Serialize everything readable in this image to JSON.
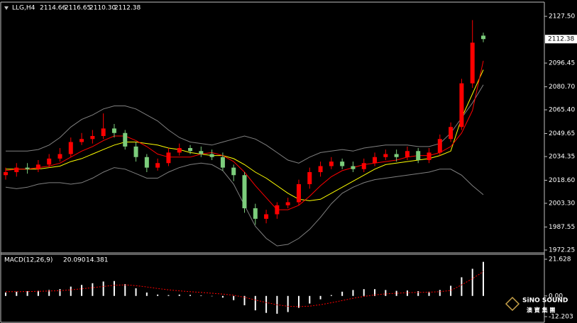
{
  "chart_data": {
    "type": "candlestick",
    "symbol_label": "LLG,H4",
    "header_values": [
      "2114.66",
      "2116.65",
      "2110.30",
      "2112.38"
    ],
    "ylim": [
      1971.3,
      2136.0
    ],
    "yticks": [
      {
        "value": 2127.5,
        "label": "2127.50"
      },
      2096.45,
      {
        "value": 2080.7,
        "label": "2080.70"
      },
      {
        "value": 2065.4,
        "label": "2065.40"
      },
      2049.65,
      2034.35,
      {
        "value": 2018.6,
        "label": "2018.60"
      },
      {
        "value": 2003.3,
        "label": "2003.30"
      },
      1987.55,
      1972.25
    ],
    "current_price": 2112.38,
    "up_color": "#ff0000",
    "down_color": "#7ccd7c",
    "open": [
      2022,
      2024,
      2027,
      2026,
      2029,
      2033,
      2036,
      2044,
      2046,
      2048,
      2053,
      2050,
      2041,
      2034,
      2027,
      2030,
      2037,
      2040,
      2038,
      2036,
      2034,
      2027,
      2022,
      2000,
      1993,
      1996,
      2002,
      2004,
      2016,
      2024,
      2028,
      2031,
      2028,
      2026,
      2030,
      2034,
      2036,
      2034,
      2038,
      2032,
      2037,
      2046,
      2054,
      2083,
      2114.66
    ],
    "high": [
      2027,
      2030,
      2030,
      2032,
      2036,
      2040,
      2047,
      2050,
      2052,
      2063,
      2056,
      2052,
      2044,
      2036,
      2033,
      2040,
      2043,
      2042,
      2041,
      2039,
      2037,
      2029,
      2024,
      2003,
      1999,
      2004,
      2007,
      2019,
      2027,
      2031,
      2034,
      2033,
      2031,
      2033,
      2037,
      2039,
      2039,
      2041,
      2040,
      2040,
      2049,
      2057,
      2086,
      2125,
      2116.65
    ],
    "low": [
      2019,
      2021,
      2023,
      2024,
      2027,
      2031,
      2034,
      2042,
      2043,
      2046,
      2047,
      2039,
      2031,
      2024,
      2025,
      2028,
      2035,
      2036,
      2034,
      2032,
      2025,
      2018,
      1997,
      1989,
      1990,
      1993,
      2000,
      2002,
      2013,
      2021,
      2026,
      2026,
      2024,
      2024,
      2028,
      2032,
      2031,
      2032,
      2030,
      2030,
      2035,
      2044,
      2052,
      2080,
      2110.3
    ],
    "close": [
      2024,
      2027,
      2026,
      2029,
      2033,
      2036,
      2044,
      2046,
      2048,
      2053,
      2050,
      2041,
      2034,
      2027,
      2030,
      2037,
      2040,
      2038,
      2036,
      2034,
      2027,
      2022,
      2000,
      1993,
      1996,
      2002,
      2004,
      2016,
      2024,
      2028,
      2031,
      2028,
      2026,
      2030,
      2034,
      2036,
      2034,
      2038,
      2032,
      2037,
      2046,
      2054,
      2083,
      2110,
      2112.38
    ],
    "overlays": [
      {
        "color": "#808080",
        "values": [
          2038,
          2038,
          2038,
          2039,
          2042,
          2047,
          2054,
          2059,
          2062,
          2066,
          2068,
          2068,
          2066,
          2062,
          2058,
          2052,
          2047,
          2044,
          2043,
          2042,
          2044,
          2046,
          2048,
          2046,
          2042,
          2037,
          2032,
          2030,
          2034,
          2037,
          2038,
          2039,
          2038,
          2040,
          2041,
          2042,
          2042,
          2042,
          2041,
          2041,
          2043,
          2050,
          2060,
          2070,
          2082
        ]
      },
      {
        "color": "#808080",
        "values": [
          2014,
          2013,
          2014,
          2016,
          2017,
          2017,
          2016,
          2017,
          2020,
          2024,
          2027,
          2026,
          2023,
          2020,
          2020,
          2024,
          2027,
          2029,
          2030,
          2029,
          2025,
          2016,
          2002,
          1988,
          1980,
          1975,
          1976,
          1980,
          1986,
          1994,
          2003,
          2010,
          2014,
          2017,
          2019,
          2020,
          2021,
          2022,
          2023,
          2024,
          2026,
          2026,
          2022,
          2015,
          2009
        ]
      },
      {
        "color": "#ffff00",
        "values": [
          2026,
          2026,
          2026,
          2026,
          2027,
          2028,
          2031,
          2033,
          2036,
          2039,
          2042,
          2044,
          2044,
          2043,
          2042,
          2040,
          2039,
          2037,
          2036,
          2035,
          2035,
          2033,
          2029,
          2024,
          2020,
          2015,
          2010,
          2006,
          2005,
          2006,
          2010,
          2014,
          2018,
          2022,
          2026,
          2029,
          2030,
          2031,
          2032,
          2033,
          2035,
          2038,
          2060,
          2076,
          2092
        ]
      },
      {
        "color": "#ff0000",
        "values": [
          2025,
          2026,
          2026,
          2027,
          2028,
          2030,
          2034,
          2038,
          2041,
          2045,
          2048,
          2048,
          2045,
          2041,
          2036,
          2034,
          2034,
          2034,
          2036,
          2037,
          2035,
          2031,
          2024,
          2015,
          2007,
          1999,
          1999,
          2002,
          2008,
          2015,
          2021,
          2025,
          2027,
          2029,
          2030,
          2031,
          2032,
          2034,
          2035,
          2035,
          2037,
          2041,
          2050,
          2065,
          2098
        ]
      }
    ],
    "macd": {
      "label": "MACD(12,26,9)",
      "printed_values": [
        "20.090",
        "14.381"
      ],
      "ylim": [
        -14.29,
        24.97
      ],
      "yticks": [
        21.628,
        {
          "value": 0,
          "label": "0.00"
        },
        -12.203
      ],
      "histogram": {
        "color": "#ffffff",
        "values": [
          2.0,
          2.5,
          2.8,
          3.0,
          3.5,
          4.0,
          5.5,
          6.5,
          7.5,
          8.5,
          8.8,
          7.0,
          4.5,
          2.0,
          0.8,
          0.5,
          0.8,
          0.6,
          0.3,
          -0.2,
          -1.0,
          -2.5,
          -5.5,
          -8.5,
          -10.0,
          -10.5,
          -9.5,
          -7.0,
          -4.5,
          -2.0,
          0.5,
          2.5,
          3.5,
          4.0,
          4.0,
          3.5,
          3.0,
          3.2,
          2.8,
          2.5,
          3.5,
          6.0,
          11.0,
          16.0,
          20.09
        ]
      },
      "signal": {
        "color": "#ff0000",
        "values": [
          2.5,
          2.5,
          2.6,
          2.7,
          2.9,
          3.1,
          3.6,
          4.2,
          4.9,
          5.6,
          6.3,
          6.5,
          6.1,
          5.3,
          4.4,
          3.6,
          3.0,
          2.5,
          2.1,
          1.6,
          1.1,
          0.4,
          -0.8,
          -2.4,
          -3.9,
          -5.2,
          -6.1,
          -6.3,
          -6.0,
          -5.2,
          -4.0,
          -2.7,
          -1.4,
          -0.3,
          0.6,
          1.2,
          1.6,
          1.9,
          2.1,
          2.2,
          2.5,
          3.2,
          6.5,
          10.2,
          14.381
        ]
      }
    },
    "watermark": {
      "brand": "SiNO SOUND",
      "chinese": "澳 寶 集 團"
    }
  }
}
